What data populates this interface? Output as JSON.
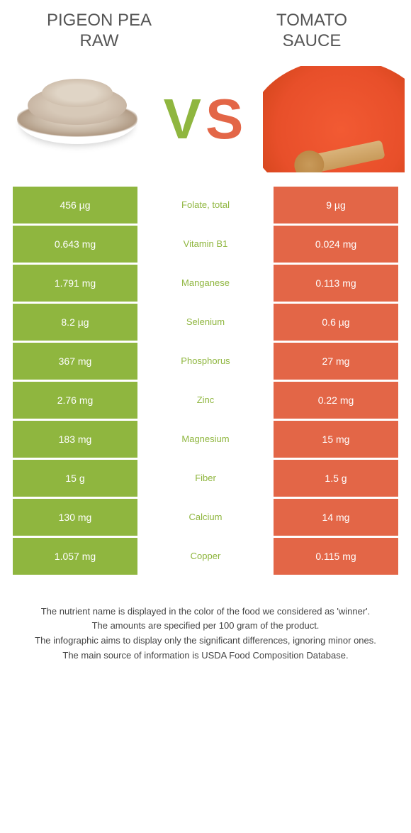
{
  "colors": {
    "left": "#8fb63f",
    "right": "#e36647",
    "row_gap": "#ffffff",
    "text_on_color": "#ffffff",
    "mid_text_left": "#8fb63f",
    "mid_text_right": "#e36647"
  },
  "title_left": "PIGEON PEA\nRAW",
  "title_right": "TOMATO\nSAUCE",
  "vs": {
    "v": "V",
    "s": "S"
  },
  "rows": [
    {
      "left": "456 µg",
      "label": "Folate, total",
      "right": "9 µg",
      "winner": "left"
    },
    {
      "left": "0.643 mg",
      "label": "Vitamin B1",
      "right": "0.024 mg",
      "winner": "left"
    },
    {
      "left": "1.791 mg",
      "label": "Manganese",
      "right": "0.113 mg",
      "winner": "left"
    },
    {
      "left": "8.2 µg",
      "label": "Selenium",
      "right": "0.6 µg",
      "winner": "left"
    },
    {
      "left": "367 mg",
      "label": "Phosphorus",
      "right": "27 mg",
      "winner": "left"
    },
    {
      "left": "2.76 mg",
      "label": "Zinc",
      "right": "0.22 mg",
      "winner": "left"
    },
    {
      "left": "183 mg",
      "label": "Magnesium",
      "right": "15 mg",
      "winner": "left"
    },
    {
      "left": "15 g",
      "label": "Fiber",
      "right": "1.5 g",
      "winner": "left"
    },
    {
      "left": "130 mg",
      "label": "Calcium",
      "right": "14 mg",
      "winner": "left"
    },
    {
      "left": "1.057 mg",
      "label": "Copper",
      "right": "0.115 mg",
      "winner": "left"
    }
  ],
  "footnotes": [
    "The nutrient name is displayed in the color of the food we considered as 'winner'.",
    "The amounts are specified per 100 gram of the product.",
    "The infographic aims to display only the significant differences, ignoring minor ones.",
    "The main source of information is USDA Food Composition Database."
  ]
}
